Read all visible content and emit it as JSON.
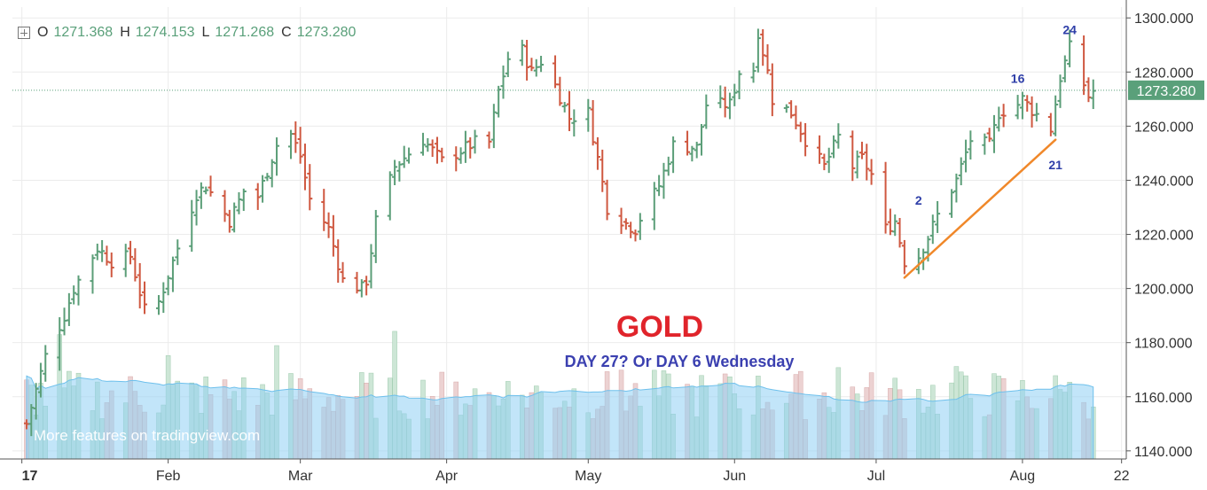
{
  "legend": {
    "o_label": "O",
    "o_value": "1271.368",
    "h_label": "H",
    "h_value": "1274.153",
    "l_label": "L",
    "l_value": "1271.268",
    "c_label": "C",
    "c_value": "1273.280",
    "icon": "plus-box-icon"
  },
  "title": "GOLD",
  "subtitle": "DAY 27?  Or DAY 6 Wednesday",
  "watermark": "More features on tradingview.com",
  "last_price_label": "1273.280",
  "colors": {
    "up": "#5b9e78",
    "down": "#cf5840",
    "title": "#e0242b",
    "subtitle": "#3b40b0",
    "trendline": "#f0882a",
    "counts": "#2e3ea8",
    "volume_ma": "#8fd0f4",
    "volume_up": "#cde6d6",
    "volume_down": "#ecd2d2",
    "grid": "#ececec",
    "last_price": "#5aa07a"
  },
  "chart_data": {
    "type": "ohlc",
    "y_range": [
      1137,
      1304
    ],
    "y_ticks": [
      "1300.000",
      "1280.000",
      "1260.000",
      "1240.000",
      "1220.000",
      "1200.000",
      "1180.000",
      "1160.000",
      "1140.000"
    ],
    "y_tick_values": [
      1300,
      1280,
      1260,
      1240,
      1220,
      1200,
      1180,
      1160,
      1140
    ],
    "x_range": [
      "2016-12-30",
      "2017-08-23"
    ],
    "x_ticks": [
      {
        "label": "17",
        "date": "2017-01-01"
      },
      {
        "label": "Feb",
        "date": "2017-02-01"
      },
      {
        "label": "Mar",
        "date": "2017-03-01"
      },
      {
        "label": "Apr",
        "date": "2017-04-01"
      },
      {
        "label": "May",
        "date": "2017-05-01"
      },
      {
        "label": "Jun",
        "date": "2017-06-01"
      },
      {
        "label": "Jul",
        "date": "2017-07-01"
      },
      {
        "label": "Aug",
        "date": "2017-08-01"
      },
      {
        "label": "22",
        "date": "2017-08-22"
      }
    ],
    "price_keypoints": [
      [
        "2017-01-02",
        1150
      ],
      [
        "2017-01-06",
        1175
      ],
      [
        "2017-01-10",
        1190
      ],
      [
        "2017-01-12",
        1200
      ],
      [
        "2017-01-17",
        1215
      ],
      [
        "2017-01-20",
        1210
      ],
      [
        "2017-01-24",
        1212
      ],
      [
        "2017-01-27",
        1192
      ],
      [
        "2017-01-30",
        1195
      ],
      [
        "2017-02-01",
        1205
      ],
      [
        "2017-02-07",
        1235
      ],
      [
        "2017-02-09",
        1238
      ],
      [
        "2017-02-14",
        1225
      ],
      [
        "2017-02-17",
        1236
      ],
      [
        "2017-02-20",
        1234
      ],
      [
        "2017-02-24",
        1253
      ],
      [
        "2017-02-27",
        1257
      ],
      [
        "2017-03-01",
        1249
      ],
      [
        "2017-03-03",
        1233
      ],
      [
        "2017-03-07",
        1222
      ],
      [
        "2017-03-10",
        1203
      ],
      [
        "2017-03-14",
        1200
      ],
      [
        "2017-03-15",
        1203
      ],
      [
        "2017-03-17",
        1225
      ],
      [
        "2017-03-21",
        1245
      ],
      [
        "2017-03-24",
        1250
      ],
      [
        "2017-03-27",
        1255
      ],
      [
        "2017-03-31",
        1247
      ],
      [
        "2017-04-03",
        1250
      ],
      [
        "2017-04-07",
        1254
      ],
      [
        "2017-04-10",
        1254
      ],
      [
        "2017-04-12",
        1273
      ],
      [
        "2017-04-14",
        1285
      ],
      [
        "2017-04-17",
        1288
      ],
      [
        "2017-04-19",
        1280
      ],
      [
        "2017-04-21",
        1284
      ],
      [
        "2017-04-24",
        1275
      ],
      [
        "2017-04-27",
        1263
      ],
      [
        "2017-05-01",
        1265
      ],
      [
        "2017-05-03",
        1248
      ],
      [
        "2017-05-05",
        1230
      ],
      [
        "2017-05-09",
        1224
      ],
      [
        "2017-05-11",
        1222
      ],
      [
        "2017-05-12",
        1226
      ],
      [
        "2017-05-16",
        1238
      ],
      [
        "2017-05-19",
        1253
      ],
      [
        "2017-05-24",
        1252
      ],
      [
        "2017-05-26",
        1268
      ],
      [
        "2017-05-31",
        1268
      ],
      [
        "2017-06-02",
        1280
      ],
      [
        "2017-06-05",
        1281
      ],
      [
        "2017-06-06",
        1295
      ],
      [
        "2017-06-08",
        1280
      ],
      [
        "2017-06-09",
        1270
      ],
      [
        "2017-06-13",
        1265
      ],
      [
        "2017-06-16",
        1255
      ],
      [
        "2017-06-20",
        1245
      ],
      [
        "2017-06-23",
        1256
      ],
      [
        "2017-06-26",
        1245
      ],
      [
        "2017-06-28",
        1248
      ],
      [
        "2017-06-30",
        1242
      ],
      [
        "2017-07-03",
        1222
      ],
      [
        "2017-07-05",
        1225
      ],
      [
        "2017-07-07",
        1210
      ],
      [
        "2017-07-10",
        1212
      ],
      [
        "2017-07-12",
        1219
      ],
      [
        "2017-07-14",
        1227
      ],
      [
        "2017-07-18",
        1240
      ],
      [
        "2017-07-21",
        1255
      ],
      [
        "2017-07-25",
        1253
      ],
      [
        "2017-07-27",
        1265
      ],
      [
        "2017-07-31",
        1268
      ],
      [
        "2017-08-01",
        1270
      ],
      [
        "2017-08-03",
        1266
      ],
      [
        "2017-08-07",
        1259
      ],
      [
        "2017-08-09",
        1278
      ],
      [
        "2017-08-11",
        1289
      ],
      [
        "2017-08-15",
        1271
      ],
      [
        "2017-08-16",
        1273
      ]
    ],
    "last_price": 1273.28,
    "trendline": [
      [
        "2017-07-07",
        1204
      ],
      [
        "2017-08-08",
        1255
      ]
    ],
    "annotations": [
      {
        "text": "2",
        "date": "2017-07-10",
        "price": 1229,
        "pos": "above"
      },
      {
        "text": "16",
        "date": "2017-07-31",
        "price": 1274,
        "pos": "above"
      },
      {
        "text": "21",
        "date": "2017-08-08",
        "price": 1250,
        "pos": "below"
      },
      {
        "text": "24",
        "date": "2017-08-11",
        "price": 1292,
        "pos": "above"
      }
    ],
    "grid": true,
    "volume": true
  }
}
